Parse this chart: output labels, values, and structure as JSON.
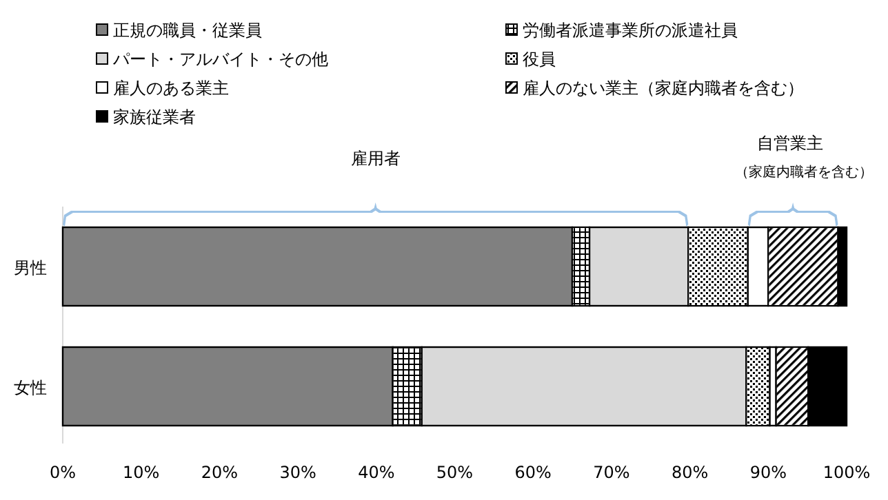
{
  "chart_data": {
    "type": "bar",
    "orientation": "horizontal",
    "stacked": true,
    "categories": [
      "男性",
      "女性"
    ],
    "series": [
      {
        "name": "正規の職員・従業員",
        "color": "#808080",
        "values": [
          65.0,
          42.1
        ]
      },
      {
        "name": "労働者派遣事業所の派遣社員",
        "color": "#ffffff",
        "values": [
          2.2,
          3.7
        ]
      },
      {
        "name": "パート・アルバイト・その他",
        "color": "#d9d9d9",
        "values": [
          12.6,
          41.4
        ]
      },
      {
        "name": "役員",
        "color": "#ffffff",
        "values": [
          7.6,
          3.0
        ]
      },
      {
        "name": "雇人のある業主",
        "color": "#ffffff",
        "values": [
          2.6,
          0.8
        ]
      },
      {
        "name": "雇人のない業主（家庭内職者を含む）",
        "color": "#ffffff",
        "values": [
          8.9,
          4.1
        ]
      },
      {
        "name": "家族従業者",
        "color": "#000000",
        "values": [
          1.1,
          4.9
        ]
      }
    ],
    "xlim": [
      0,
      100
    ],
    "xticks": [
      {
        "value": 0,
        "label": "0%"
      },
      {
        "value": 10,
        "label": "10%"
      },
      {
        "value": 20,
        "label": "20%"
      },
      {
        "value": 30,
        "label": "30%"
      },
      {
        "value": 40,
        "label": "40%"
      },
      {
        "value": 50,
        "label": "50%"
      },
      {
        "value": 60,
        "label": "60%"
      },
      {
        "value": 70,
        "label": "70%"
      },
      {
        "value": 80,
        "label": "80%"
      },
      {
        "value": 90,
        "label": "90%"
      },
      {
        "value": 100,
        "label": "100%"
      }
    ],
    "legend": "top",
    "annotations": [
      "雇用者",
      "自営業主",
      "（家庭内職者を含む）"
    ]
  }
}
